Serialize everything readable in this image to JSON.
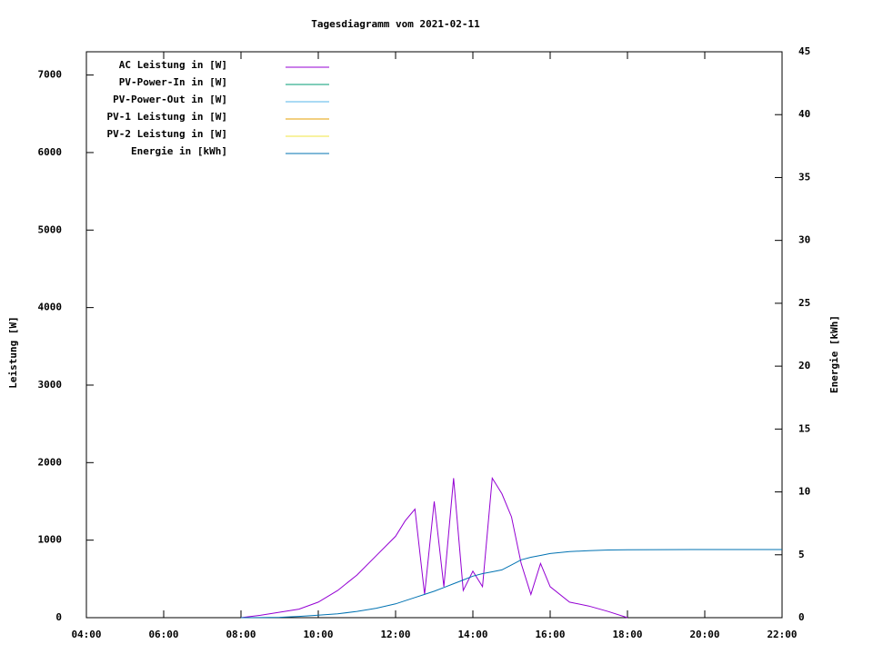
{
  "chart_data": {
    "type": "line",
    "title": "Tagesdiagramm vom 2021-02-11",
    "ylabel": "Leistung [W]",
    "y2label": "Energie [kWh]",
    "x": [
      "08:00",
      "08:30",
      "09:00",
      "09:30",
      "10:00",
      "10:30",
      "11:00",
      "11:30",
      "12:00",
      "12:15",
      "12:30",
      "12:45",
      "13:00",
      "13:15",
      "13:30",
      "13:45",
      "14:00",
      "14:15",
      "14:30",
      "14:45",
      "15:00",
      "15:15",
      "15:30",
      "15:45",
      "16:00",
      "16:30",
      "17:00",
      "17:30",
      "18:00",
      "20:00",
      "22:00"
    ],
    "xlim": [
      "04:00",
      "22:00"
    ],
    "xticks": [
      "04:00",
      "06:00",
      "08:00",
      "10:00",
      "12:00",
      "14:00",
      "16:00",
      "18:00",
      "20:00",
      "22:00"
    ],
    "ylim": [
      0,
      7300
    ],
    "yticks": [
      0,
      1000,
      2000,
      3000,
      4000,
      5000,
      6000,
      7000
    ],
    "y2lim": [
      0,
      45
    ],
    "y2ticks": [
      0,
      5,
      10,
      15,
      20,
      25,
      30,
      35,
      40,
      45
    ],
    "legend": "top-left",
    "series": [
      {
        "name": "AC Leistung in [W]",
        "color": "#9400d3",
        "values": [
          0,
          30,
          70,
          110,
          200,
          350,
          550,
          800,
          1050,
          1250,
          1400,
          300,
          1500,
          400,
          1800,
          350,
          600,
          400,
          1800,
          1600,
          1300,
          700,
          300,
          700,
          400,
          200,
          150,
          80,
          0,
          null,
          null
        ]
      },
      {
        "name": "PV-Power-In in [W]",
        "color": "#009e73",
        "values": [
          null,
          null,
          null,
          null,
          null,
          null,
          null,
          null,
          null,
          null,
          null,
          null,
          null,
          null,
          null,
          null,
          null,
          null,
          null,
          null,
          null,
          null,
          null,
          null,
          null,
          null,
          null,
          null,
          null,
          null,
          null
        ]
      },
      {
        "name": "PV-Power-Out in [W]",
        "color": "#56b4e9",
        "values": [
          null,
          null,
          null,
          null,
          null,
          null,
          null,
          null,
          null,
          null,
          null,
          null,
          null,
          null,
          null,
          null,
          null,
          null,
          null,
          null,
          null,
          null,
          null,
          null,
          null,
          null,
          null,
          null,
          null,
          null,
          null
        ]
      },
      {
        "name": "PV-1 Leistung in [W]",
        "color": "#e69f00",
        "values": [
          null,
          null,
          null,
          null,
          null,
          null,
          null,
          null,
          null,
          null,
          null,
          null,
          null,
          null,
          null,
          null,
          null,
          null,
          null,
          null,
          null,
          null,
          null,
          null,
          null,
          null,
          null,
          null,
          null,
          null,
          null
        ]
      },
      {
        "name": "PV-2 Leistung in [W]",
        "color": "#f0e442",
        "values": [
          null,
          null,
          null,
          null,
          null,
          null,
          null,
          null,
          null,
          null,
          null,
          null,
          null,
          null,
          null,
          null,
          null,
          null,
          null,
          null,
          null,
          null,
          null,
          null,
          null,
          null,
          null,
          null,
          null,
          null,
          null
        ]
      },
      {
        "name": "Energie in [kWh]",
        "color": "#0072b2",
        "axis": "y2",
        "values": [
          0,
          0.01,
          0.03,
          0.1,
          0.2,
          0.3,
          0.5,
          0.75,
          1.1,
          1.35,
          1.6,
          1.85,
          2.1,
          2.4,
          2.7,
          3.0,
          3.3,
          3.5,
          3.65,
          3.8,
          4.2,
          4.6,
          4.8,
          4.95,
          5.1,
          5.25,
          5.33,
          5.38,
          5.4,
          5.42,
          5.42
        ]
      }
    ]
  }
}
